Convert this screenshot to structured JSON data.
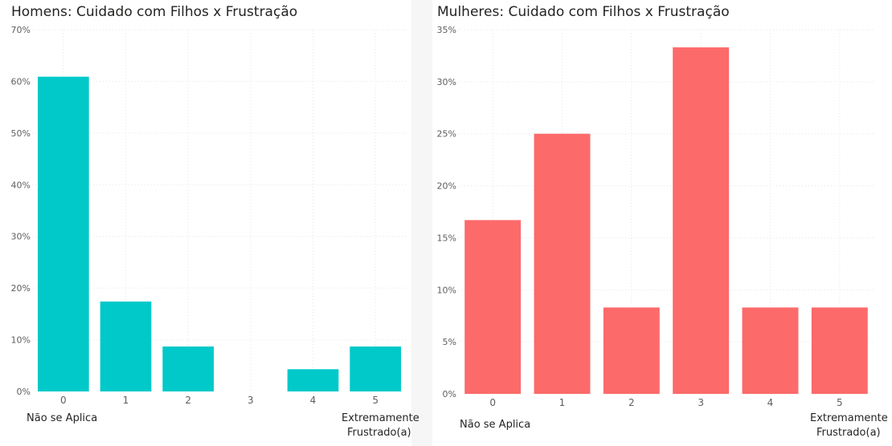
{
  "chart_data": [
    {
      "type": "bar",
      "title": "Homens: Cuidado com Filhos x Frustração",
      "categories": [
        "0",
        "1",
        "2",
        "3",
        "4",
        "5"
      ],
      "values": [
        60.9,
        17.4,
        8.7,
        0,
        4.3,
        8.7
      ],
      "ylim": [
        0,
        70
      ],
      "y_ticks": [
        "0%",
        "10%",
        "20%",
        "30%",
        "40%",
        "50%",
        "60%",
        "70%"
      ],
      "low_end_label": "Não se Aplica",
      "high_end_label": [
        "Extremamente",
        "Frustrado(a)"
      ],
      "grid": true,
      "color": "#01c9c9"
    },
    {
      "type": "bar",
      "title": "Mulheres: Cuidado com Filhos x Frustração",
      "categories": [
        "0",
        "1",
        "2",
        "3",
        "4",
        "5"
      ],
      "values": [
        16.7,
        25.0,
        8.3,
        33.3,
        8.3,
        8.3
      ],
      "ylim": [
        0,
        35
      ],
      "y_ticks": [
        "0%",
        "5%",
        "10%",
        "15%",
        "20%",
        "25%",
        "30%",
        "35%"
      ],
      "low_end_label": "Não se Aplica",
      "high_end_label": [
        "Extremamente",
        "Frustrado(a)"
      ],
      "grid": true,
      "color": "#fd6a6a"
    }
  ]
}
